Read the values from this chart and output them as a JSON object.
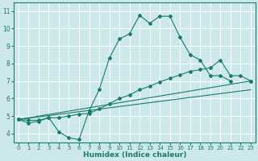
{
  "xlabel": "Humidex (Indice chaleur)",
  "bg_color": "#cce8ea",
  "grid_color": "#ffffff",
  "line_color": "#1a7a6e",
  "xlim": [
    -0.5,
    23.5
  ],
  "ylim": [
    3.5,
    11.5
  ],
  "xticks": [
    0,
    1,
    2,
    3,
    4,
    5,
    6,
    7,
    8,
    9,
    10,
    11,
    12,
    13,
    14,
    15,
    16,
    17,
    18,
    19,
    20,
    21,
    22,
    23
  ],
  "yticks": [
    4,
    5,
    6,
    7,
    8,
    9,
    10,
    11
  ],
  "line1_x": [
    0,
    1,
    2,
    3,
    4,
    5,
    6,
    7,
    8,
    9,
    10,
    11,
    12,
    13,
    14,
    15,
    16,
    17,
    18,
    19,
    20,
    21
  ],
  "line1_y": [
    4.8,
    4.6,
    4.7,
    4.9,
    4.1,
    3.75,
    3.65,
    5.3,
    6.5,
    8.3,
    9.4,
    9.7,
    10.75,
    10.3,
    10.7,
    10.7,
    9.5,
    8.5,
    8.2,
    7.3,
    7.3,
    7.0
  ],
  "line2_x": [
    0,
    1,
    2,
    3,
    4,
    5,
    6,
    7,
    8,
    9,
    10,
    11,
    12,
    13,
    14,
    15,
    16,
    17,
    18,
    19,
    20,
    21,
    22,
    23
  ],
  "line2_y": [
    4.8,
    4.75,
    4.75,
    4.9,
    4.9,
    5.0,
    5.1,
    5.15,
    5.4,
    5.7,
    6.0,
    6.2,
    6.5,
    6.7,
    6.95,
    7.15,
    7.35,
    7.55,
    7.65,
    7.75,
    8.2,
    7.3,
    7.3,
    7.0
  ],
  "line3_x": [
    0,
    23
  ],
  "line3_y": [
    4.8,
    7.0
  ],
  "line4_x": [
    0,
    23
  ],
  "line4_y": [
    4.8,
    6.5
  ]
}
